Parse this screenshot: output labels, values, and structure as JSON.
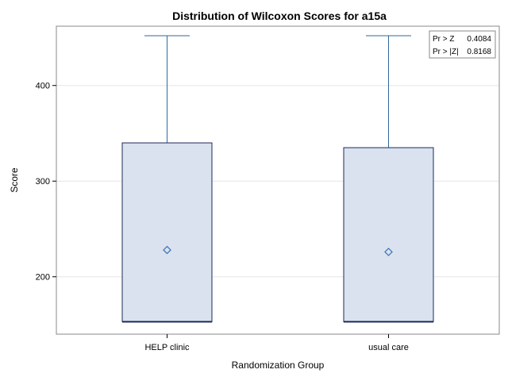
{
  "chart_data": {
    "type": "box",
    "title": "Distribution of Wilcoxon Scores for a15a",
    "xlabel": "Randomization Group",
    "ylabel": "Score",
    "ylim": [
      140,
      462
    ],
    "yticks": [
      200,
      300,
      400
    ],
    "grid": true,
    "categories": [
      "HELP clinic",
      "usual care"
    ],
    "boxes": [
      {
        "category": "HELP clinic",
        "min": 153,
        "q1": 153,
        "median": 153,
        "q3": 340,
        "max": 452,
        "mean": 228
      },
      {
        "category": "usual care",
        "min": 153,
        "q1": 153,
        "median": 153,
        "q3": 335,
        "max": 452,
        "mean": 226
      }
    ],
    "colors": {
      "box_fill": "#d9e2ee",
      "box_edge": "#1f2a5c",
      "whisker": "#2d6a9f",
      "mean_marker": "#3d6fb5",
      "grid": "#e6e6e6",
      "frame": "#888888"
    },
    "inset": {
      "placement": "top-right",
      "rows": [
        {
          "label": "Pr > Z",
          "value": "0.4084"
        },
        {
          "label": "Pr > |Z|",
          "value": "0.8168"
        }
      ]
    }
  }
}
